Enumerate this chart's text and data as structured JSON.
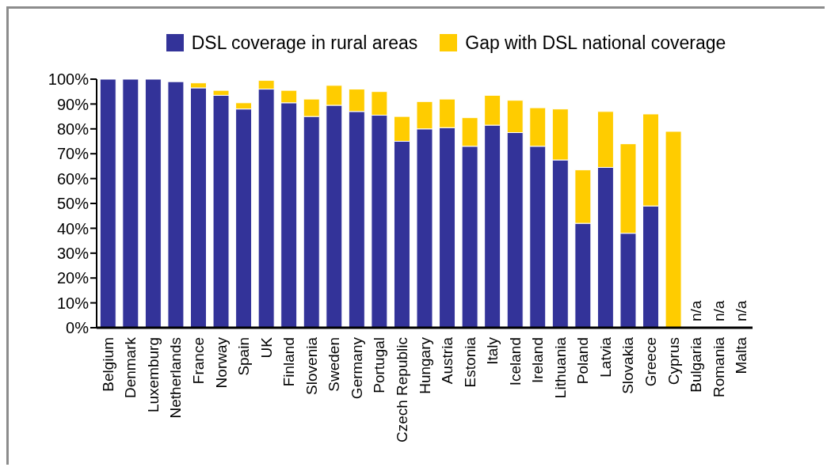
{
  "chart_data": {
    "type": "bar",
    "stacked": true,
    "categories": [
      "Belgium",
      "Denmark",
      "Luxemburg",
      "Netherlands",
      "France",
      "Norway",
      "Spain",
      "UK",
      "Finland",
      "Slovenia",
      "Sweden",
      "Germany",
      "Portugal",
      "Czech Republic",
      "Hungary",
      "Austria",
      "Estonia",
      "Italy",
      "Iceland",
      "Ireland",
      "Lithuania",
      "Poland",
      "Latvia",
      "Slovakia",
      "Greece",
      "Cyprus",
      "Bulgaria",
      "Romania",
      "Malta"
    ],
    "series": [
      {
        "name": "DSL coverage in rural areas",
        "color": "#333399",
        "values": [
          100,
          100,
          100,
          99,
          96.5,
          93.5,
          88,
          96,
          90.5,
          85,
          89.5,
          87,
          85.5,
          75,
          80,
          80.5,
          73,
          81.5,
          78.5,
          73,
          67.5,
          42,
          64.5,
          38,
          49,
          0,
          null,
          null,
          null
        ],
        "value_labels": [
          null,
          null,
          null,
          null,
          null,
          null,
          null,
          null,
          null,
          null,
          null,
          null,
          null,
          null,
          null,
          null,
          null,
          null,
          null,
          null,
          null,
          null,
          null,
          null,
          null,
          null,
          "n/a",
          "n/a",
          "n/a"
        ]
      },
      {
        "name": "Gap with DSL national coverage",
        "color": "#ffcc00",
        "values": [
          0,
          0,
          0,
          0,
          2,
          2,
          2.5,
          3.5,
          5,
          7,
          8,
          9,
          9.5,
          10,
          11,
          11.5,
          11.5,
          12,
          13,
          15.5,
          20.5,
          21.5,
          22.5,
          36,
          37,
          79,
          null,
          null,
          null
        ]
      }
    ],
    "ylim": [
      0,
      100
    ],
    "yticks": [
      {
        "value": 0,
        "label": "0%"
      },
      {
        "value": 10,
        "label": "10%"
      },
      {
        "value": 20,
        "label": "20%"
      },
      {
        "value": 30,
        "label": "30%"
      },
      {
        "value": 40,
        "label": "40%"
      },
      {
        "value": 50,
        "label": "50%"
      },
      {
        "value": 60,
        "label": "60%"
      },
      {
        "value": 70,
        "label": "70%"
      },
      {
        "value": 80,
        "label": "80%"
      },
      {
        "value": 90,
        "label": "90%"
      },
      {
        "value": 100,
        "label": "100%"
      }
    ],
    "legend": "top"
  }
}
